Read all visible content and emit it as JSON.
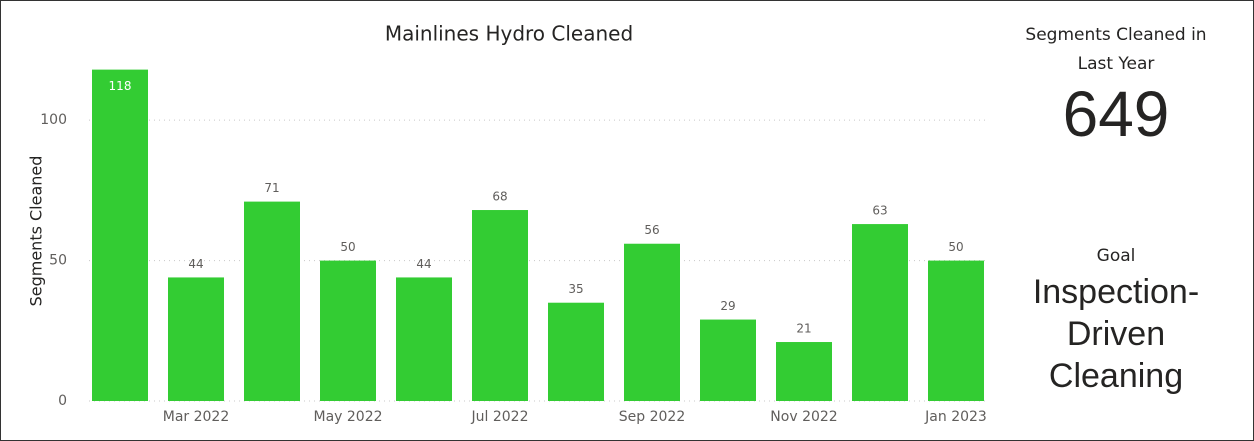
{
  "chart_data": {
    "type": "bar",
    "title": "Mainlines Hydro Cleaned",
    "y_label": "Segments Cleaned",
    "categories": [
      null,
      "Mar 2022",
      null,
      "May 2022",
      null,
      "Jul 2022",
      null,
      "Sep 2022",
      null,
      "Nov 2022",
      null,
      "Jan 2023"
    ],
    "values": [
      118,
      44,
      71,
      50,
      44,
      68,
      35,
      56,
      29,
      21,
      63,
      50
    ],
    "color": "#33cc33",
    "ylim": [
      0,
      120
    ],
    "yticks": [
      0,
      50,
      100
    ],
    "grid": true
  },
  "cards": [
    {
      "title": "Segments Cleaned in Last Year",
      "value": 649
    },
    {
      "title": "Goal",
      "value": "Inspection-Driven Cleaning"
    }
  ]
}
